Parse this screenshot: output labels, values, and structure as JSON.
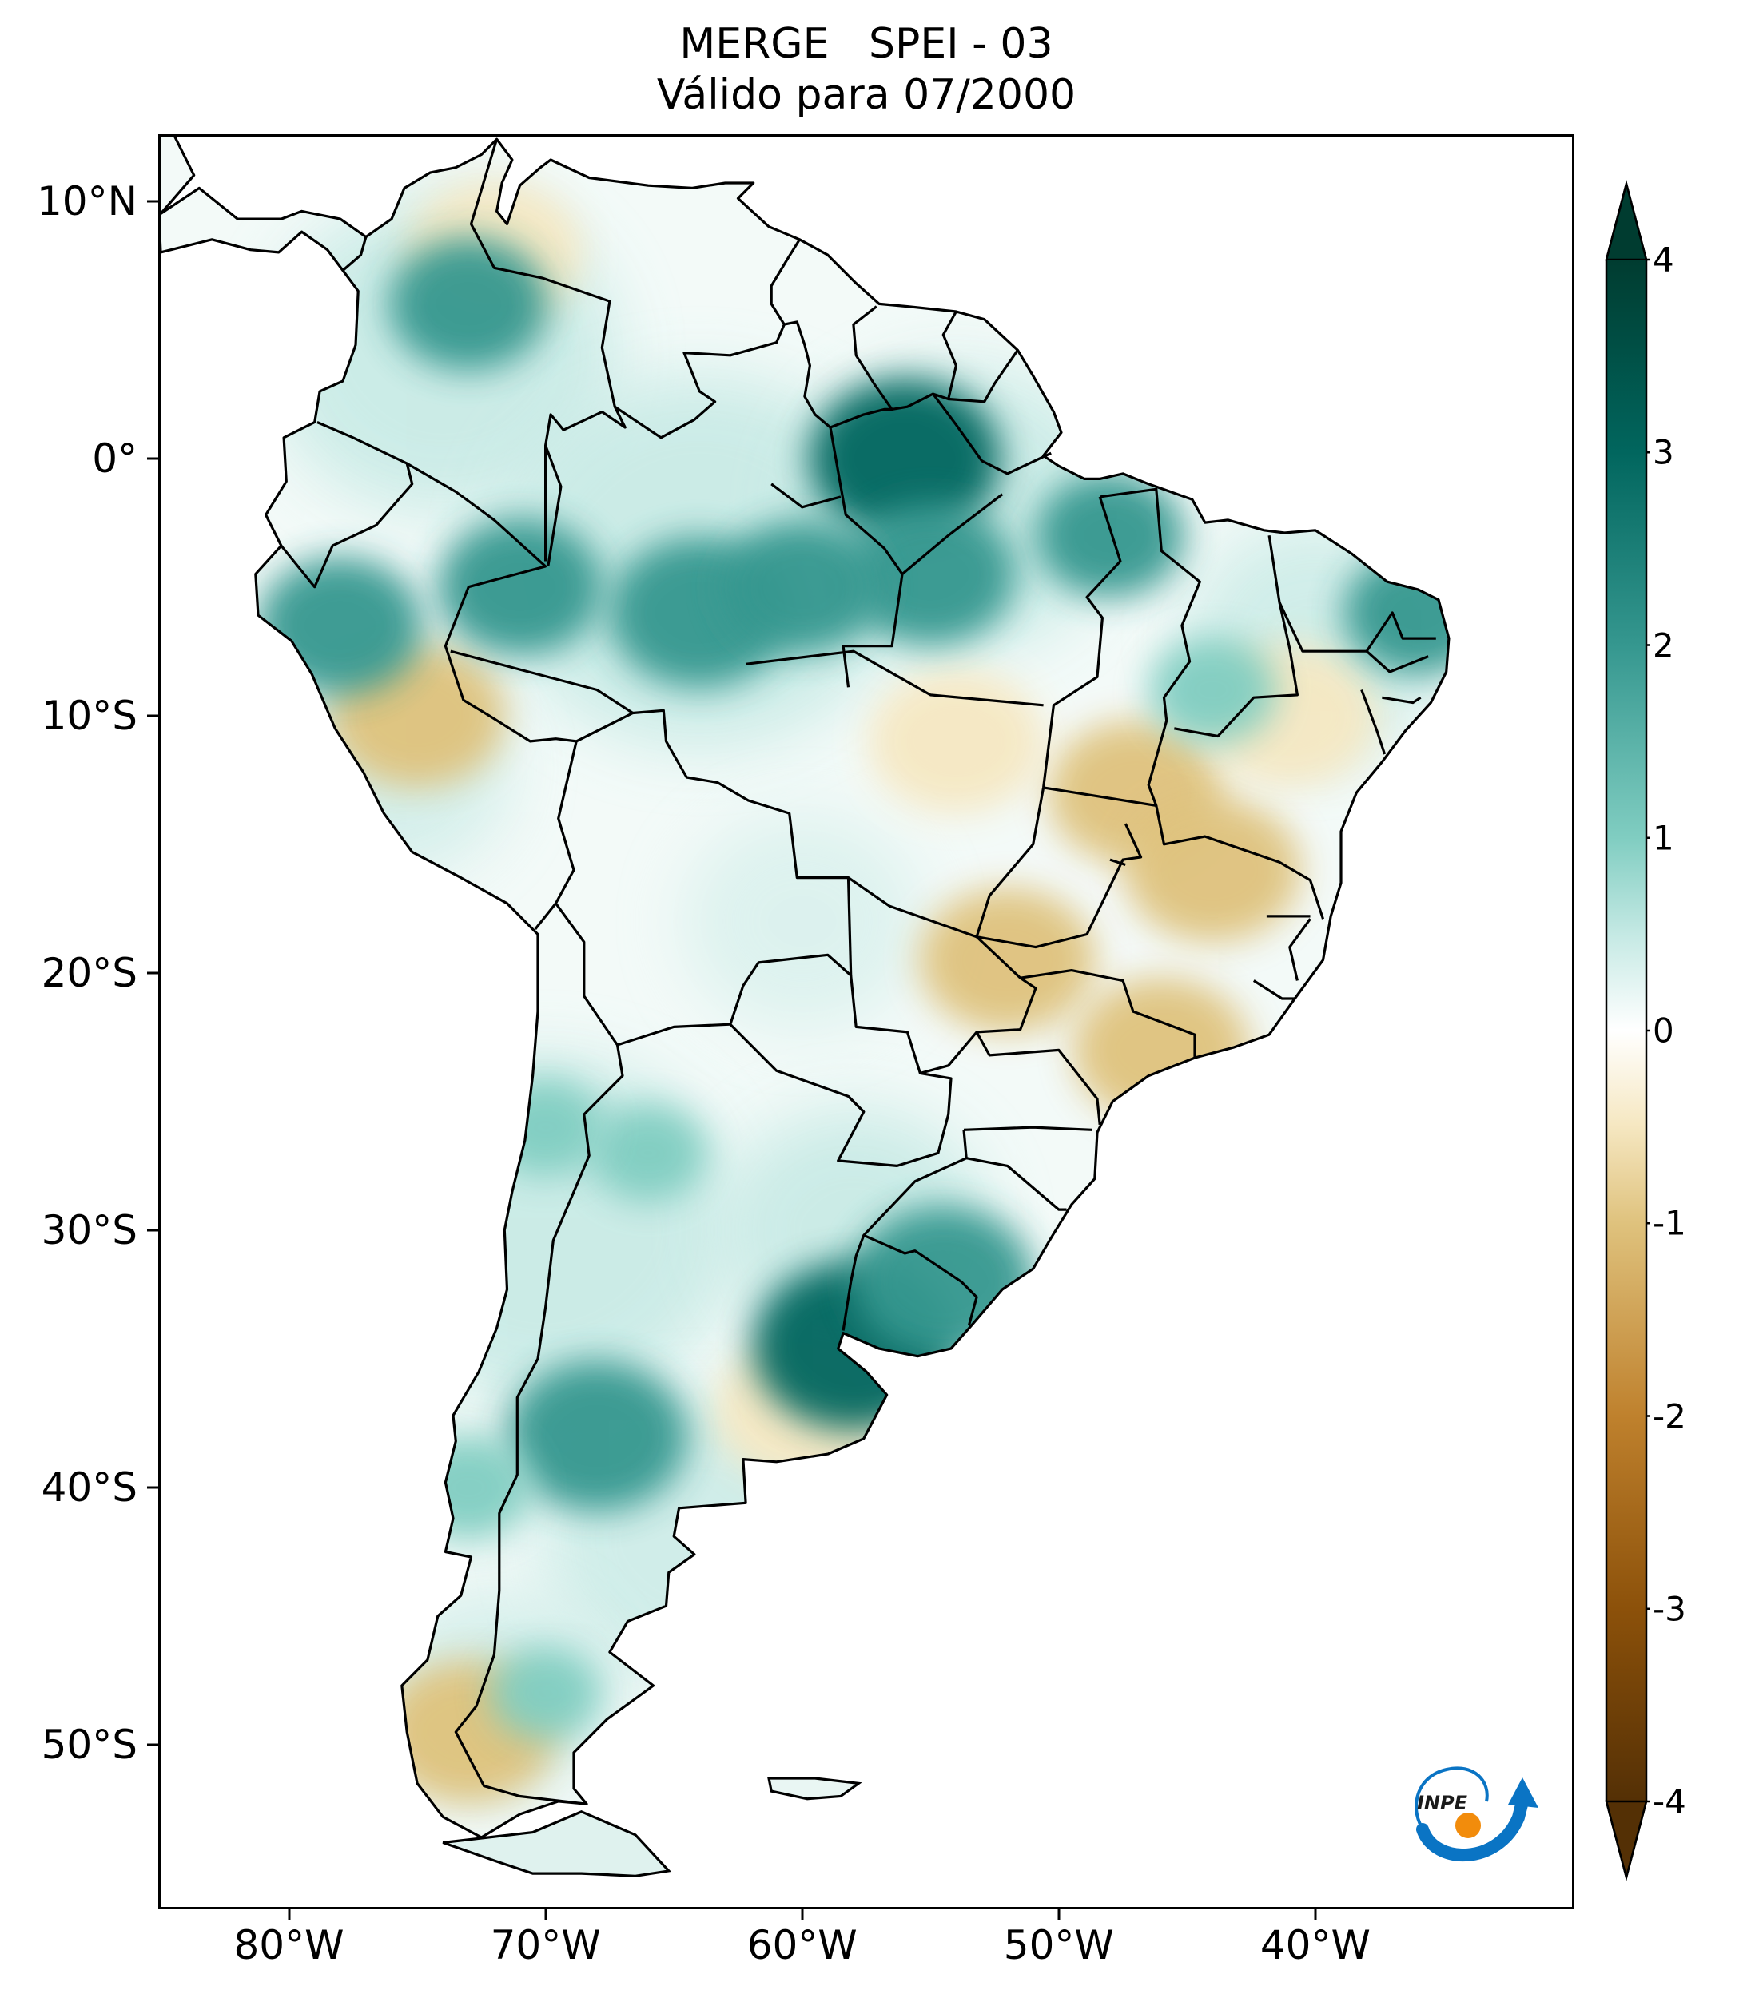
{
  "title": {
    "line1": "MERGE   SPEI - 03",
    "line2": "Válido para 07/2000"
  },
  "axes": {
    "lat_labels": [
      "10°N",
      "0°",
      "10°S",
      "20°S",
      "30°S",
      "40°S",
      "50°S"
    ],
    "lat_values": [
      10,
      0,
      -10,
      -20,
      -30,
      -40,
      -50
    ],
    "lon_labels": [
      "80°W",
      "70°W",
      "60°W",
      "50°W",
      "40°W"
    ],
    "lon_values": [
      -80,
      -70,
      -60,
      -50,
      -40
    ],
    "lat_range": [
      -56.3,
      12.5
    ],
    "lon_range": [
      -85.0,
      -30.0
    ]
  },
  "colorbar": {
    "tick_labels": [
      "4",
      "3",
      "2",
      "1",
      "0",
      "-1",
      "-2",
      "-3",
      "-4"
    ],
    "range": [
      -4,
      4
    ],
    "extend": "both",
    "colors": {
      "neg4": "#543005",
      "neg3": "#8c510a",
      "neg2": "#bf812d",
      "neg1": "#dfc27d",
      "neg05": "#f6e8c3",
      "zero": "#ffffff",
      "pos05": "#c7eae5",
      "pos1": "#80cdc1",
      "pos2": "#35978f",
      "pos3": "#01665e",
      "pos4": "#003c30"
    }
  },
  "map_data": {
    "variable": "SPEI - 03",
    "source": "MERGE",
    "period": "07/2000",
    "wet_regions": [
      {
        "lon": -58,
        "lat": -34.5,
        "value": 3.2
      },
      {
        "lon": -54.5,
        "lat": -32,
        "value": 2.8
      },
      {
        "lon": -68,
        "lat": -38,
        "value": 2.8
      },
      {
        "lon": -56,
        "lat": 0,
        "value": 3.0
      },
      {
        "lon": -64,
        "lat": -6,
        "value": 2.8
      },
      {
        "lon": -55,
        "lat": -4.5,
        "value": 2.6
      },
      {
        "lon": -60,
        "lat": -5,
        "value": 2.4
      },
      {
        "lon": -73,
        "lat": 6,
        "value": 2.4
      },
      {
        "lon": -71,
        "lat": -5,
        "value": 2.5
      },
      {
        "lon": -78,
        "lat": -6.5,
        "value": 2.5
      },
      {
        "lon": -36,
        "lat": -6,
        "value": 2.2
      },
      {
        "lon": -44,
        "lat": -9,
        "value": 1.8
      },
      {
        "lon": -48,
        "lat": -3,
        "value": 2.2
      },
      {
        "lon": -66,
        "lat": -27,
        "value": 1.6
      },
      {
        "lon": -70,
        "lat": -26,
        "value": 1.6
      },
      {
        "lon": -73,
        "lat": -40,
        "value": 1.8
      },
      {
        "lon": -70,
        "lat": -48,
        "value": 1.5
      }
    ],
    "dry_regions": [
      {
        "lon": -47,
        "lat": -13,
        "value": -0.8
      },
      {
        "lon": -54,
        "lat": -11,
        "value": -0.5
      },
      {
        "lon": -44,
        "lat": -16,
        "value": -0.7
      },
      {
        "lon": -52,
        "lat": -19.5,
        "value": -0.8
      },
      {
        "lon": -46,
        "lat": -23,
        "value": -0.8
      },
      {
        "lon": -75,
        "lat": -10,
        "value": -1.0
      },
      {
        "lon": -72,
        "lat": 8,
        "value": -0.6
      },
      {
        "lon": -60,
        "lat": -37,
        "value": -0.6
      },
      {
        "lon": -73,
        "lat": -49.5,
        "value": -0.8
      },
      {
        "lon": -41,
        "lat": -10,
        "value": -0.6
      }
    ]
  },
  "logo": {
    "text": "INPE",
    "colors": {
      "arc": "#0a74c4",
      "dot": "#f28c0c"
    }
  }
}
